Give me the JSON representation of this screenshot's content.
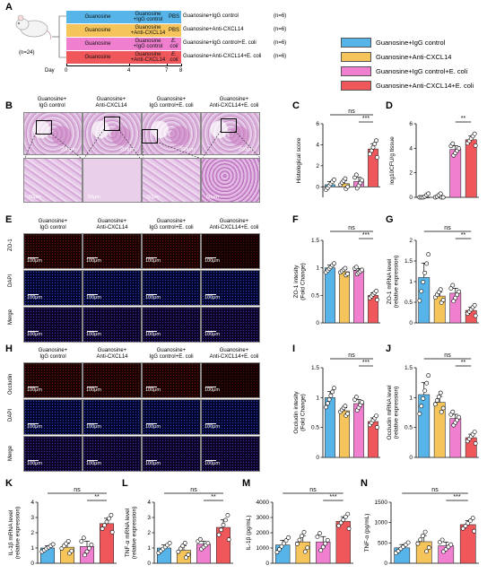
{
  "colors": {
    "blue": "#56b4e9",
    "yellow": "#f5c45a",
    "pink": "#f07fd0",
    "red": "#f0575a"
  },
  "panels": [
    "A",
    "B",
    "C",
    "D",
    "E",
    "F",
    "G",
    "H",
    "I",
    "J",
    "K",
    "L",
    "M",
    "N"
  ],
  "panelA": {
    "n_total": "(n=24)",
    "day_label": "Day",
    "days": [
      "0",
      "4",
      "7",
      "8"
    ],
    "rows": [
      {
        "segments": [
          "Guanosine",
          "Guanosine\n+IgG control",
          "PBS"
        ],
        "label": "Guanosine+IgG control",
        "n": "(n=6)"
      },
      {
        "segments": [
          "Guanosine",
          "Guanosine\n+Anti-CXCL14",
          "PBS"
        ],
        "label": "Guanosine+Anti-CXCL14",
        "n": "(n=6)"
      },
      {
        "segments": [
          "Guanosine",
          "Guanosine\n+IgG control",
          "E. coli"
        ],
        "label": "Guanosine+IgG control+E. coli",
        "n": "(n=6)"
      },
      {
        "segments": [
          "Guanosine",
          "Guanosine\n+Anti-CXCL14",
          "E. coli"
        ],
        "label": "Guanosine+Anti-CXCL14+E. coli",
        "n": "(n=6)"
      }
    ]
  },
  "legend": [
    "Guanosine+IgG control",
    "Guanosine+Anti-CXCL14",
    "Guanosine+IgG control+E. coli",
    "Guanosine+Anti-CXCL14+E. coli"
  ],
  "col_headers": [
    "Guanosine+\nIgG control",
    "Guanosine+\nAnti-CXCL14",
    "Guanosine+\nIgG control+E. coli",
    "Guanosine+\nAnti-CXCL14+E. coli"
  ],
  "scale": {
    "s200": "200μm",
    "s50": "50μm",
    "s100": "100μm"
  },
  "rows_E": [
    "ZO-1",
    "DAPI",
    "Merge"
  ],
  "rows_H": [
    "Occludin",
    "DAPI",
    "Merge"
  ],
  "sig": {
    "ns": "ns",
    "two": "**",
    "three": "***"
  },
  "chart_data": [
    {
      "panel": "C",
      "type": "bar",
      "ylabel": "Histological score",
      "ylim": [
        -1,
        6
      ],
      "yticks": [
        0,
        2,
        4,
        6
      ],
      "values": [
        0.2,
        0.3,
        0.5,
        3.6
      ],
      "errors": [
        0.3,
        0.3,
        0.4,
        0.5
      ],
      "sig": [
        {
          "a": 0,
          "b": 3,
          "text": "ns"
        },
        {
          "a": 2,
          "b": 3,
          "text": "***"
        }
      ]
    },
    {
      "panel": "D",
      "type": "bar",
      "ylabel": "log10CFU/g tissue",
      "ylim": [
        0,
        6
      ],
      "yticks": [
        0,
        2,
        4,
        6
      ],
      "values": [
        0,
        0,
        3.9,
        4.7
      ],
      "errors": [
        0,
        0,
        0.3,
        0.3
      ],
      "sig": [
        {
          "a": 2,
          "b": 3,
          "text": "**"
        }
      ]
    },
    {
      "panel": "F",
      "type": "bar",
      "ylabel": "ZO-1 intesity\n(Fold Change)",
      "ylim": [
        0,
        1.5
      ],
      "yticks": [
        0,
        0.5,
        1.0,
        1.5
      ],
      "values": [
        1.0,
        0.93,
        0.95,
        0.5
      ],
      "errors": [
        0.05,
        0.04,
        0.04,
        0.05
      ],
      "sig": [
        {
          "a": 0,
          "b": 3,
          "text": "ns"
        },
        {
          "a": 2,
          "b": 3,
          "text": "***"
        }
      ]
    },
    {
      "panel": "G",
      "type": "bar",
      "ylabel": "ZO-1 mRNA  level\n(relative expression)",
      "ylim": [
        0,
        2.0
      ],
      "yticks": [
        0,
        0.5,
        1.0,
        1.5,
        2.0
      ],
      "values": [
        1.1,
        0.65,
        0.72,
        0.3
      ],
      "errors": [
        0.35,
        0.1,
        0.12,
        0.08
      ],
      "sig": [
        {
          "a": 0,
          "b": 3,
          "text": "ns"
        },
        {
          "a": 2,
          "b": 3,
          "text": "**"
        }
      ]
    },
    {
      "panel": "I",
      "type": "bar",
      "ylabel": "Occludin intesity\n(Fold Change)",
      "ylim": [
        0,
        1.5
      ],
      "yticks": [
        0,
        0.5,
        1.0,
        1.5
      ],
      "values": [
        1.0,
        0.78,
        0.9,
        0.6
      ],
      "errors": [
        0.1,
        0.05,
        0.07,
        0.06
      ],
      "sig": [
        {
          "a": 0,
          "b": 3,
          "text": "ns"
        },
        {
          "a": 2,
          "b": 3,
          "text": "***"
        }
      ]
    },
    {
      "panel": "J",
      "type": "bar",
      "ylabel": "Occludin mRNA  level\n(relative expression)",
      "ylim": [
        0,
        1.5
      ],
      "yticks": [
        0,
        0.5,
        1.0,
        1.5
      ],
      "values": [
        1.05,
        0.92,
        0.65,
        0.33
      ],
      "errors": [
        0.2,
        0.1,
        0.07,
        0.06
      ],
      "sig": [
        {
          "a": 0,
          "b": 3,
          "text": "ns"
        },
        {
          "a": 2,
          "b": 3,
          "text": "**"
        }
      ]
    },
    {
      "panel": "K",
      "type": "bar",
      "ylabel": "IL-1β mRNA  level\n(relative expression)",
      "ylim": [
        0,
        4
      ],
      "yticks": [
        0,
        1,
        2,
        3,
        4
      ],
      "values": [
        1.0,
        1.05,
        1.1,
        2.6
      ],
      "errors": [
        0.15,
        0.25,
        0.35,
        0.35
      ],
      "sig": [
        {
          "a": 0,
          "b": 3,
          "text": "ns"
        },
        {
          "a": 2,
          "b": 3,
          "text": "**"
        }
      ]
    },
    {
      "panel": "L",
      "type": "bar",
      "ylabel": "TNF-α mRNA  level\n(relative expression)",
      "ylim": [
        0,
        4
      ],
      "yticks": [
        0,
        1,
        2,
        3,
        4
      ],
      "values": [
        1.0,
        0.85,
        1.25,
        2.35
      ],
      "errors": [
        0.2,
        0.3,
        0.2,
        0.5
      ],
      "sig": [
        {
          "a": 0,
          "b": 3,
          "text": "ns"
        },
        {
          "a": 2,
          "b": 3,
          "text": "**"
        }
      ]
    },
    {
      "panel": "M",
      "type": "bar",
      "ylabel": "IL-1β (pg/mL)",
      "ylim": [
        0,
        4000
      ],
      "yticks": [
        0,
        1000,
        2000,
        3000,
        4000
      ],
      "values": [
        1200,
        1400,
        1400,
        2750
      ],
      "errors": [
        300,
        400,
        350,
        300
      ],
      "sig": [
        {
          "a": 0,
          "b": 3,
          "text": "ns"
        },
        {
          "a": 2,
          "b": 3,
          "text": "***"
        }
      ]
    },
    {
      "panel": "N",
      "type": "bar",
      "ylabel": "TNF-α (pg/mL)",
      "ylim": [
        0,
        1500
      ],
      "yticks": [
        0,
        500,
        1000,
        1500
      ],
      "values": [
        380,
        530,
        430,
        950
      ],
      "errors": [
        80,
        150,
        90,
        100
      ],
      "sig": [
        {
          "a": 0,
          "b": 3,
          "text": "ns"
        },
        {
          "a": 2,
          "b": 3,
          "text": "***"
        }
      ]
    }
  ]
}
